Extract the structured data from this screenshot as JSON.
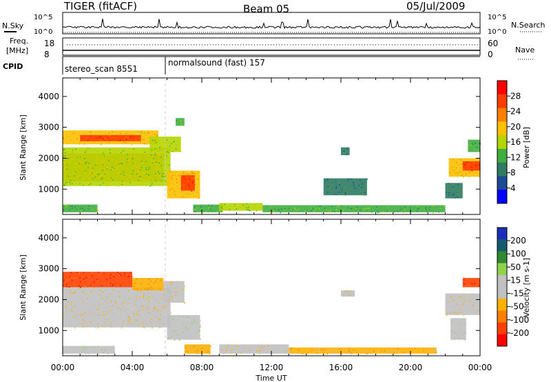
{
  "header": {
    "station": "TIGER (fitACF)",
    "beam": "Beam 05",
    "date": "05/Jul/2009"
  },
  "strip_noise": {
    "left_label": "N.Sky",
    "right_label": "N.Search",
    "ticks_left": [
      "10^5",
      "10^0"
    ],
    "ticks_right": [
      "10^5",
      "10^0"
    ]
  },
  "strip_freq": {
    "left_label": "Freq.",
    "left_unit": "[MHz]",
    "right_label": "Nave",
    "ticks_left": [
      "18",
      "8"
    ],
    "ticks_right": [
      "60",
      "0"
    ]
  },
  "strip_cpid": {
    "label": "CPID",
    "segments": [
      {
        "name": "stereo_scan 8551",
        "start_hour": 0,
        "end_hour": 6
      },
      {
        "name": "normalsound (fast) 157",
        "start_hour": 6,
        "end_hour": 24
      }
    ]
  },
  "power_colorbar": {
    "label": "Power [dB]",
    "ticks": [
      "28",
      "24",
      "20",
      "16",
      "12",
      "8",
      "4"
    ],
    "colors": [
      "#ff0000",
      "#ff3b00",
      "#ff8000",
      "#ffc000",
      "#b4d400",
      "#3fae3f",
      "#2e7a62",
      "#1a4a96",
      "#0000ff"
    ]
  },
  "velocity_colorbar": {
    "label": "Velocity [m s-1]",
    "ticks": [
      "200",
      "100",
      "50",
      "15",
      "-15",
      "-50",
      "-100",
      "-200"
    ],
    "colors": [
      "#1c2eb8",
      "#165a6e",
      "#2f8a2f",
      "#8fd24b",
      "#c0c0c0",
      "#c0c0c0",
      "#ffb000",
      "#ff8000",
      "#ff4000",
      "#ff0000"
    ]
  },
  "chart_data": [
    {
      "type": "heatmap",
      "panel": "power",
      "xlabel": "Time UT",
      "ylabel": "Slant Range [km]",
      "x_ticks": [
        "00:00",
        "04:00",
        "08:00",
        "12:00",
        "16:00",
        "20:00",
        "00:00"
      ],
      "xlim_hours": [
        0,
        24
      ],
      "y_ticks": [
        1000,
        2000,
        3000,
        4000
      ],
      "ylim_km": [
        180,
        4600
      ],
      "color_scale_db": [
        0,
        30
      ],
      "regions": [
        {
          "t0": 0.0,
          "t1": 5.8,
          "r0": 1250,
          "r1": 2150,
          "value": 24
        },
        {
          "t0": 0.0,
          "t1": 6.2,
          "r0": 1100,
          "r1": 2350,
          "value": 14
        },
        {
          "t0": 0.0,
          "t1": 5.5,
          "r0": 2450,
          "r1": 2900,
          "value": 18
        },
        {
          "t0": 1.0,
          "t1": 4.5,
          "r0": 2550,
          "r1": 2750,
          "value": 27
        },
        {
          "t0": 5.0,
          "t1": 6.8,
          "r0": 2200,
          "r1": 2700,
          "value": 14
        },
        {
          "t0": 6.0,
          "t1": 7.9,
          "r0": 700,
          "r1": 1600,
          "value": 17
        },
        {
          "t0": 6.8,
          "t1": 7.6,
          "r0": 950,
          "r1": 1450,
          "value": 26
        },
        {
          "t0": 6.5,
          "t1": 7.0,
          "r0": 3050,
          "r1": 3300,
          "value": 10
        },
        {
          "t0": 0.0,
          "t1": 2.0,
          "r0": 250,
          "r1": 500,
          "value": 12
        },
        {
          "t0": 7.5,
          "t1": 9.2,
          "r0": 250,
          "r1": 500,
          "value": 10
        },
        {
          "t0": 9.0,
          "t1": 11.5,
          "r0": 300,
          "r1": 550,
          "value": 15
        },
        {
          "t0": 11.5,
          "t1": 22.0,
          "r0": 250,
          "r1": 480,
          "value": 12
        },
        {
          "t0": 16.0,
          "t1": 16.5,
          "r0": 2100,
          "r1": 2350,
          "value": 8
        },
        {
          "t0": 15.0,
          "t1": 17.5,
          "r0": 800,
          "r1": 1350,
          "value": 6
        },
        {
          "t0": 22.2,
          "t1": 24.0,
          "r0": 1400,
          "r1": 2000,
          "value": 18
        },
        {
          "t0": 23.0,
          "t1": 24.0,
          "r0": 1600,
          "r1": 1900,
          "value": 26
        },
        {
          "t0": 22.0,
          "t1": 23.0,
          "r0": 700,
          "r1": 1200,
          "value": 8
        },
        {
          "t0": 23.3,
          "t1": 24.0,
          "r0": 2200,
          "r1": 2600,
          "value": 12
        }
      ]
    },
    {
      "type": "heatmap",
      "panel": "velocity",
      "xlabel": "Time UT",
      "ylabel": "Slant Range [km]",
      "x_ticks": [
        "00:00",
        "04:00",
        "08:00",
        "12:00",
        "16:00",
        "20:00",
        "00:00"
      ],
      "xlim_hours": [
        0,
        24
      ],
      "y_ticks": [
        1000,
        2000,
        3000,
        4000
      ],
      "ylim_km": [
        180,
        4600
      ],
      "color_scale_ms": [
        -250,
        250
      ],
      "regions": [
        {
          "t0": 0.0,
          "t1": 6.2,
          "r0": 1100,
          "r1": 2400,
          "value": 0
        },
        {
          "t0": 0.0,
          "t1": 4.0,
          "r0": 2400,
          "r1": 2900,
          "value": -220
        },
        {
          "t0": 4.0,
          "t1": 5.8,
          "r0": 2300,
          "r1": 2700,
          "value": -80
        },
        {
          "t0": 5.8,
          "t1": 7.0,
          "r0": 1900,
          "r1": 2600,
          "value": 0
        },
        {
          "t0": 6.0,
          "t1": 7.9,
          "r0": 700,
          "r1": 1500,
          "value": 30
        },
        {
          "t0": 7.0,
          "t1": 8.5,
          "r0": 250,
          "r1": 550,
          "value": -60
        },
        {
          "t0": 0.0,
          "t1": 3.0,
          "r0": 250,
          "r1": 500,
          "value": 30
        },
        {
          "t0": 9.0,
          "t1": 13.0,
          "r0": 250,
          "r1": 550,
          "value": 0
        },
        {
          "t0": 13.0,
          "t1": 21.5,
          "r0": 250,
          "r1": 450,
          "value": -70
        },
        {
          "t0": 16.0,
          "t1": 16.8,
          "r0": 2100,
          "r1": 2300,
          "value": -10
        },
        {
          "t0": 22.0,
          "t1": 24.0,
          "r0": 1500,
          "r1": 2200,
          "value": 0
        },
        {
          "t0": 22.3,
          "t1": 23.2,
          "r0": 700,
          "r1": 1400,
          "value": 40
        },
        {
          "t0": 23.0,
          "t1": 24.0,
          "r0": 2400,
          "r1": 2700,
          "value": -200
        }
      ]
    }
  ]
}
